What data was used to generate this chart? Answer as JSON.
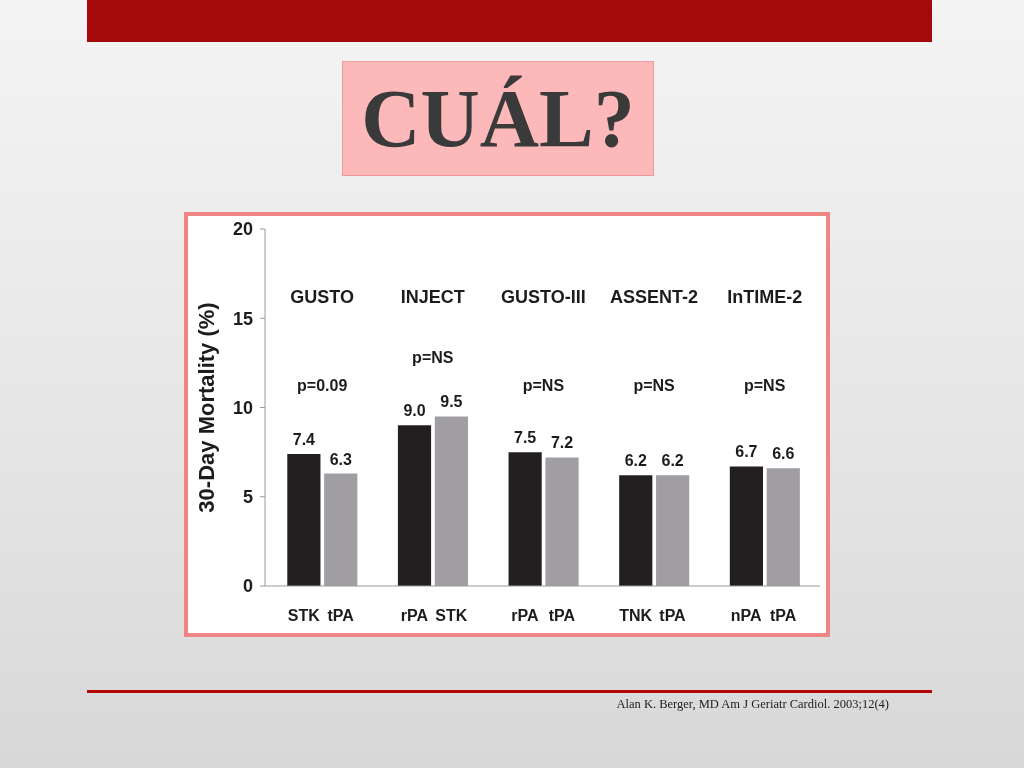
{
  "chart_data": {
    "type": "bar",
    "title": "CUÁL?",
    "ylabel": "30-Day Mortality (%)",
    "categories": [
      "STK",
      "tPA",
      "rPA",
      "STK",
      "rPA",
      "tPA",
      "TNK",
      "tPA",
      "nPA",
      "tPA"
    ],
    "values": [
      7.4,
      6.3,
      9.0,
      9.5,
      7.5,
      7.2,
      6.2,
      6.2,
      6.7,
      6.6
    ],
    "colors": [
      "#231f20",
      "#a09da3",
      "#231f20",
      "#a09da3",
      "#231f20",
      "#a09da3",
      "#231f20",
      "#a09da3",
      "#231f20",
      "#a09da3"
    ],
    "value_labels": [
      "7.4",
      "6.3",
      "9.0",
      "9.5",
      "7.5",
      "7.2",
      "6.2",
      "6.2",
      "6.7",
      "6.6"
    ],
    "ylim": [
      0,
      20
    ],
    "yticks": [
      0,
      5,
      10,
      15,
      20
    ],
    "annotations": [
      "GUSTO",
      "INJECT",
      "GUSTO-III",
      "ASSENT-2",
      "InTIME-2",
      "p=0.09",
      "p=NS",
      "p=NS",
      "p=NS",
      "p=NS",
      "Alan K. Berger, MD Am J Geriatr Cardiol. 2003;12(4)"
    ]
  }
}
